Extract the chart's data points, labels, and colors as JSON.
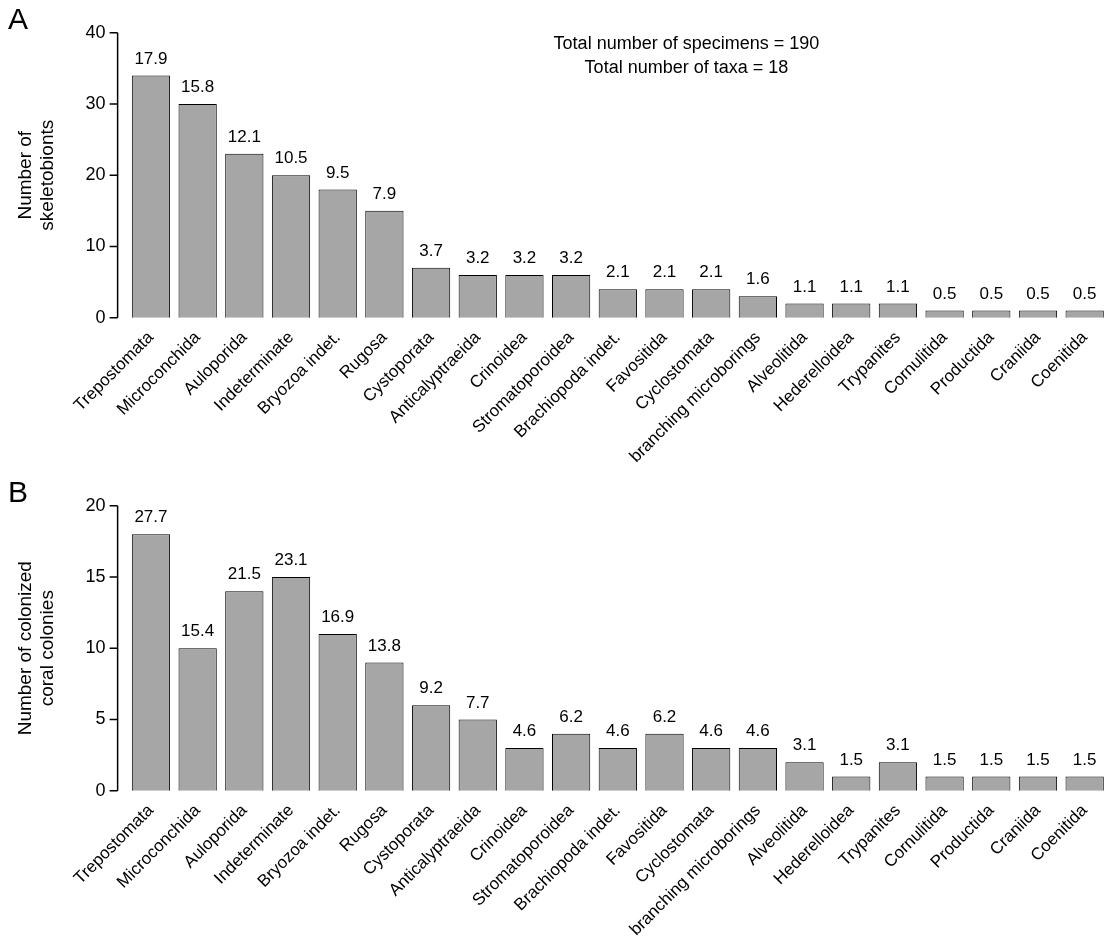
{
  "chart_data": [
    {
      "type": "bar",
      "title": "A",
      "ylabel": "Number of skeletobionts",
      "categories": [
        "Trepostomata",
        "Microconchida",
        "Auloporida",
        "Indeterminate",
        "Bryozoa indet.",
        "Rugosa",
        "Cystoporata",
        "Anticalyptraeida",
        "Crinoidea",
        "Stromatoporoidea",
        "Brachiopoda indet.",
        "Favositida",
        "Cyclostomata",
        "branching microborings",
        "Alveolitida",
        "Hederelloidea",
        "Trypanites",
        "Cornulitida",
        "Productida",
        "Craniida",
        "Coenitida"
      ],
      "values": [
        34,
        30,
        23,
        20,
        18,
        15,
        7,
        6,
        6,
        6,
        4,
        4,
        4,
        3,
        2,
        2,
        2,
        1,
        1,
        1,
        1
      ],
      "color": "#a6a6a6",
      "ylim": [
        0,
        40
      ],
      "yticks": [
        0,
        10,
        20,
        30,
        40
      ],
      "grid": false,
      "legend": false,
      "annotations": [
        "Total number of specimens = 190",
        "Total number of taxa = 18",
        {
          "text": "17.9",
          "x": "Trepostomata",
          "y": 34
        },
        {
          "text": "15.8",
          "x": "Microconchida",
          "y": 30
        },
        {
          "text": "12.1",
          "x": "Auloporida",
          "y": 23
        },
        {
          "text": "10.5",
          "x": "Indeterminate",
          "y": 20
        },
        {
          "text": "9.5",
          "x": "Bryozoa indet.",
          "y": 18
        },
        {
          "text": "7.9",
          "x": "Rugosa",
          "y": 15
        },
        {
          "text": "3.7",
          "x": "Cystoporata",
          "y": 7
        },
        {
          "text": "3.2",
          "x": "Anticalyptraeida",
          "y": 6
        },
        {
          "text": "3.2",
          "x": "Crinoidea",
          "y": 6
        },
        {
          "text": "3.2",
          "x": "Stromatoporoidea",
          "y": 6
        },
        {
          "text": "2.1",
          "x": "Brachiopoda indet.",
          "y": 4
        },
        {
          "text": "2.1",
          "x": "Favositida",
          "y": 4
        },
        {
          "text": "2.1",
          "x": "Cyclostomata",
          "y": 4
        },
        {
          "text": "1.6",
          "x": "branching microborings",
          "y": 3
        },
        {
          "text": "1.1",
          "x": "Alveolitida",
          "y": 2
        },
        {
          "text": "1.1",
          "x": "Hederelloidea",
          "y": 2
        },
        {
          "text": "1.1",
          "x": "Trypanites",
          "y": 2
        },
        {
          "text": "0.5",
          "x": "Cornulitida",
          "y": 1
        },
        {
          "text": "0.5",
          "x": "Productida",
          "y": 1
        },
        {
          "text": "0.5",
          "x": "Craniida",
          "y": 1
        },
        {
          "text": "0.5",
          "x": "Coenitida",
          "y": 1
        }
      ]
    },
    {
      "type": "bar",
      "title": "B",
      "ylabel": "Number of colonized coral colonies",
      "categories": [
        "Trepostomata",
        "Microconchida",
        "Auloporida",
        "Indeterminate",
        "Bryozoa indet.",
        "Rugosa",
        "Cystoporata",
        "Anticalyptraeida",
        "Crinoidea",
        "Stromatoporoidea",
        "Brachiopoda indet.",
        "Favositida",
        "Cyclostomata",
        "branching microborings",
        "Alveolitida",
        "Hederelloidea",
        "Trypanites",
        "Cornulitida",
        "Productida",
        "Craniida",
        "Coenitida"
      ],
      "values": [
        18,
        10,
        14,
        15,
        11,
        9,
        6,
        5,
        3,
        4,
        3,
        4,
        3,
        3,
        2,
        1,
        2,
        1,
        1,
        1,
        1
      ],
      "color": "#a6a6a6",
      "ylim": [
        0,
        20
      ],
      "yticks": [
        0,
        5,
        10,
        15,
        20
      ],
      "grid": false,
      "legend": false,
      "annotations": [
        {
          "text": "27.7",
          "x": "Trepostomata",
          "y": 18
        },
        {
          "text": "15.4",
          "x": "Microconchida",
          "y": 10
        },
        {
          "text": "21.5",
          "x": "Auloporida",
          "y": 14
        },
        {
          "text": "23.1",
          "x": "Indeterminate",
          "y": 15
        },
        {
          "text": "16.9",
          "x": "Bryozoa indet.",
          "y": 11
        },
        {
          "text": "13.8",
          "x": "Rugosa",
          "y": 9
        },
        {
          "text": "9.2",
          "x": "Cystoporata",
          "y": 6
        },
        {
          "text": "7.7",
          "x": "Anticalyptraeida",
          "y": 5
        },
        {
          "text": "4.6",
          "x": "Crinoidea",
          "y": 3
        },
        {
          "text": "6.2",
          "x": "Stromatoporoidea",
          "y": 4
        },
        {
          "text": "4.6",
          "x": "Brachiopoda indet.",
          "y": 3
        },
        {
          "text": "6.2",
          "x": "Favositida",
          "y": 4
        },
        {
          "text": "4.6",
          "x": "Cyclostomata",
          "y": 3
        },
        {
          "text": "4.6",
          "x": "branching microborings",
          "y": 3
        },
        {
          "text": "3.1",
          "x": "Alveolitida",
          "y": 2
        },
        {
          "text": "1.5",
          "x": "Hederelloidea",
          "y": 1
        },
        {
          "text": "3.1",
          "x": "Trypanites",
          "y": 2
        },
        {
          "text": "1.5",
          "x": "Cornulitida",
          "y": 1
        },
        {
          "text": "1.5",
          "x": "Productida",
          "y": 1
        },
        {
          "text": "1.5",
          "x": "Craniida",
          "y": 1
        },
        {
          "text": "1.5",
          "x": "Coenitida",
          "y": 1
        }
      ]
    }
  ]
}
